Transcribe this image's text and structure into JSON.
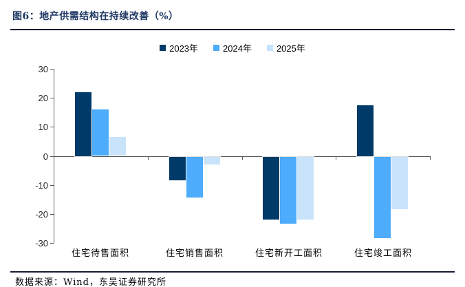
{
  "figure": {
    "title": "图6：地产供需结构在持续改善（%）",
    "source": "数据来源：Wind，东吴证券研究所"
  },
  "legend": {
    "position": "top-center",
    "items": [
      {
        "label": "2023年",
        "color": "#003A68"
      },
      {
        "label": "2024年",
        "color": "#4DACFB"
      },
      {
        "label": "2025年",
        "color": "#C9E3FB"
      }
    ]
  },
  "chart_data": {
    "type": "bar",
    "title": "地产供需结构在持续改善（%）",
    "categories": [
      "住宅待售面积",
      "住宅销售面积",
      "住宅新开工面积",
      "住宅竣工面积"
    ],
    "series": [
      {
        "name": "2023年",
        "color": "#003A68",
        "values": [
          22,
          -8,
          -21.5,
          17.5
        ]
      },
      {
        "name": "2024年",
        "color": "#4DACFB",
        "values": [
          16,
          -14,
          -23,
          -28
        ]
      },
      {
        "name": "2025年",
        "color": "#C9E3FB",
        "values": [
          6.5,
          -2.5,
          -21.5,
          -18
        ]
      }
    ],
    "xlabel": "",
    "ylabel": "",
    "ylim": [
      -30,
      30
    ],
    "yticks": [
      30,
      20,
      10,
      0,
      -10,
      -20,
      -30
    ],
    "grid": false,
    "legend_position": "top"
  },
  "colors": {
    "title": "#1F3864",
    "rule": "#151C33",
    "axis": "#595959",
    "text": "#000000"
  }
}
